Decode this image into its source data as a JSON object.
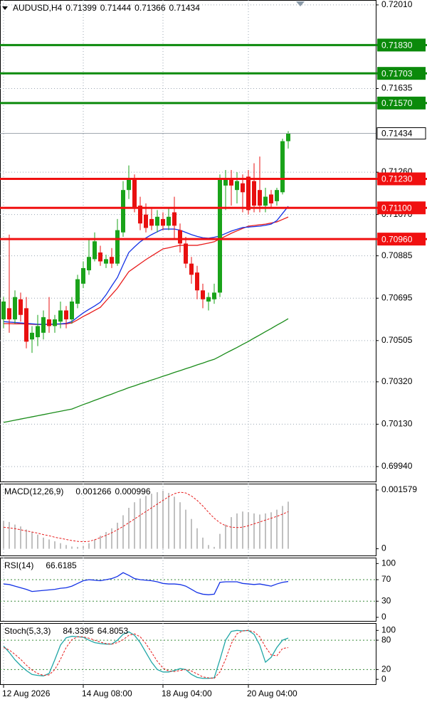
{
  "chart_data": [
    {
      "type": "candlestick",
      "symbol": "AUDUSD,H4",
      "categories": [
        "12 Aug 2026",
        null,
        null,
        null,
        null,
        null,
        null,
        null,
        null,
        null,
        null,
        null,
        null,
        null,
        "14 Aug 08:00",
        null,
        null,
        null,
        null,
        null,
        null,
        null,
        null,
        null,
        null,
        null,
        null,
        null,
        "18 Aug 04:00",
        null,
        null,
        null,
        null,
        null,
        null,
        null,
        null,
        null,
        null,
        null,
        null,
        null,
        null,
        "20 Aug 04:00",
        null,
        null,
        null,
        null,
        null,
        null,
        null
      ],
      "open": [
        0.706,
        0.7065,
        0.706,
        0.7069,
        0.7065,
        0.7051,
        0.7052,
        0.7054,
        0.706,
        0.7057,
        0.7059,
        0.7064,
        0.706,
        0.7067,
        0.7076,
        0.7082,
        0.7087,
        0.709,
        0.7085,
        0.7088,
        0.7085,
        0.7099,
        0.7118,
        0.7123,
        0.7111,
        0.7107,
        0.7105,
        0.7102,
        0.7105,
        0.7102,
        0.7108,
        0.71,
        0.7094,
        0.7085,
        0.7081,
        0.7073,
        0.7068,
        0.7069,
        0.7072,
        0.712,
        0.7123,
        0.7118,
        0.7121,
        0.7124,
        0.7122,
        0.7118,
        0.7111,
        0.7116,
        0.7113,
        0.7117,
        0.71399
      ],
      "high": [
        0.707,
        0.7098,
        0.7073,
        0.7072,
        0.707,
        0.7057,
        0.7062,
        0.7064,
        0.707,
        0.7062,
        0.7068,
        0.7066,
        0.707,
        0.708,
        0.7086,
        0.7096,
        0.7099,
        0.7093,
        0.7089,
        0.7092,
        0.7105,
        0.7122,
        0.7129,
        0.7125,
        0.7115,
        0.7112,
        0.711,
        0.7109,
        0.7108,
        0.711,
        0.7115,
        0.7103,
        0.7097,
        0.7088,
        0.7084,
        0.7076,
        0.7072,
        0.7076,
        0.7125,
        0.7127,
        0.7127,
        0.7126,
        0.7125,
        0.7127,
        0.713,
        0.7133,
        0.7119,
        0.7118,
        0.7119,
        0.7141,
        0.71444
      ],
      "low": [
        0.7056,
        0.7054,
        0.7058,
        0.7059,
        0.7047,
        0.7045,
        0.7048,
        0.7051,
        0.7054,
        0.7054,
        0.7056,
        0.7056,
        0.7058,
        0.7065,
        0.7074,
        0.708,
        0.7086,
        0.7084,
        0.7083,
        0.7083,
        0.7084,
        0.7097,
        0.7114,
        0.7108,
        0.71,
        0.7099,
        0.71,
        0.7099,
        0.71,
        0.71,
        0.7096,
        0.709,
        0.7083,
        0.7076,
        0.7069,
        0.7065,
        0.7064,
        0.7067,
        0.707,
        0.7109,
        0.7111,
        0.7112,
        0.7108,
        0.7107,
        0.7108,
        0.7108,
        0.7108,
        0.711,
        0.7111,
        0.7116,
        0.71366
      ],
      "close": [
        0.7068,
        0.706,
        0.707,
        0.7062,
        0.705,
        0.7054,
        0.7057,
        0.7061,
        0.7057,
        0.706,
        0.7064,
        0.706,
        0.7068,
        0.7078,
        0.7083,
        0.7088,
        0.7095,
        0.7086,
        0.7087,
        0.7085,
        0.71,
        0.7118,
        0.7123,
        0.711,
        0.7103,
        0.7101,
        0.7102,
        0.7106,
        0.7102,
        0.7106,
        0.7102,
        0.7094,
        0.7085,
        0.708,
        0.7073,
        0.7069,
        0.707,
        0.7072,
        0.7123,
        0.7123,
        0.712,
        0.7122,
        0.7117,
        0.7109,
        0.7111,
        0.7111,
        0.7115,
        0.7112,
        0.7118,
        0.71399,
        0.71434
      ],
      "up_color": "#1aa31a",
      "down_color": "#e81010",
      "series": [
        {
          "color": "#1a8c1a",
          "values": [
            0.70138,
            0.70143,
            0.70148,
            0.70153,
            0.70158,
            0.70163,
            0.70168,
            0.70173,
            0.70178,
            0.70183,
            0.70188,
            0.70193,
            0.70198,
            0.70208,
            0.70218,
            0.70227,
            0.70237,
            0.70246,
            0.70256,
            0.70265,
            0.70275,
            0.70284,
            0.70294,
            0.70302,
            0.70311,
            0.70319,
            0.70328,
            0.70336,
            0.70345,
            0.70353,
            0.70362,
            0.7037,
            0.70379,
            0.70387,
            0.70396,
            0.70404,
            0.70413,
            0.70421,
            0.70434,
            0.70448,
            0.70461,
            0.70474,
            0.70488,
            0.70501,
            0.70516,
            0.7053,
            0.70545,
            0.70559,
            0.70574,
            0.70588,
            0.70603
          ]
        },
        {
          "color": "#e81c1c",
          "values": [
            0.70581,
            0.70581,
            0.7058,
            0.7058,
            0.70579,
            0.70578,
            0.70577,
            0.70577,
            0.70577,
            0.70578,
            0.70579,
            0.7058,
            0.70584,
            0.70598,
            0.70613,
            0.70626,
            0.7064,
            0.70654,
            0.70683,
            0.70711,
            0.7074,
            0.70777,
            0.70814,
            0.70832,
            0.7085,
            0.70868,
            0.70884,
            0.709,
            0.70916,
            0.70921,
            0.70927,
            0.70932,
            0.70932,
            0.70932,
            0.70932,
            0.70937,
            0.70942,
            0.70948,
            0.70961,
            0.70973,
            0.70986,
            0.70997,
            0.71008,
            0.71018,
            0.71021,
            0.71024,
            0.71027,
            0.71032,
            0.71037,
            0.71048,
            0.71059
          ]
        },
        {
          "color": "#1432e6",
          "values": [
            0.7059,
            0.70588,
            0.70586,
            0.70584,
            0.70582,
            0.7058,
            0.70578,
            0.70578,
            0.70578,
            0.70579,
            0.7058,
            0.70582,
            0.7059,
            0.7061,
            0.70629,
            0.70645,
            0.7066,
            0.70677,
            0.7071,
            0.7075,
            0.70788,
            0.70845,
            0.709,
            0.70925,
            0.70948,
            0.70965,
            0.7098,
            0.70993,
            0.71005,
            0.71005,
            0.71005,
            0.71,
            0.7099,
            0.7098,
            0.70972,
            0.70966,
            0.70964,
            0.70968,
            0.70974,
            0.70985,
            0.70996,
            0.71004,
            0.71012,
            0.71014,
            0.71016,
            0.71018,
            0.71022,
            0.71027,
            0.71043,
            0.71075,
            0.71107
          ]
        }
      ],
      "levels": [
        {
          "value": 0.7183,
          "label": "0.71830",
          "color": "#0b8a0b"
        },
        {
          "value": 0.71703,
          "color": "#0b8a0b"
        },
        {
          "value": 0.7157,
          "label": "0.71570",
          "color": "#0b8a0b"
        },
        {
          "value": 0.7123,
          "label": "0.71230",
          "color": "#f01010"
        },
        {
          "value": 0.711,
          "label": "0.71100",
          "color": "#f01010"
        },
        {
          "value": 0.7096,
          "label": "0.70960",
          "color": "#f01010"
        }
      ],
      "ylim": [
        0.69873,
        0.72032
      ],
      "yticks": [
        {
          "value": 0.7201,
          "label": "0.72010"
        },
        0.71635,
        {
          "value": 0.7126,
          "label": "0.71260"
        },
        {
          "value": 0.7107,
          "label": "0.71070"
        },
        0.70885,
        0.70695,
        0.70505,
        {
          "value": 0.7032,
          "label": "0.70320"
        },
        {
          "value": 0.7013,
          "label": "0.70130"
        },
        {
          "value": 0.6994,
          "label": "0.69940"
        }
      ],
      "grid": true
    },
    {
      "type": "macd",
      "label": "MACD(12,26,9)",
      "series": [
        {
          "color": "#c0c0c0",
          "style": "bar",
          "values": [
            0.00075,
            0.00072,
            0.00065,
            0.0006,
            0.00052,
            0.00045,
            0.00038,
            0.0003,
            0.00025,
            0.0002,
            0.00015,
            0.0001,
            6e-05,
            5e-05,
            8e-05,
            0.00015,
            0.00025,
            0.00035,
            0.00045,
            0.00055,
            0.0007,
            0.0009,
            0.0011,
            0.00125,
            0.00135,
            0.00142,
            0.00148,
            0.00152,
            0.00156,
            0.0015,
            0.0014,
            0.00125,
            0.00105,
            0.0008,
            0.00055,
            0.0003,
            0.0001,
            5e-05,
            0.0004,
            0.00065,
            0.00085,
            0.00095,
            0.001,
            0.00098,
            0.00095,
            0.00092,
            0.00095,
            0.00098,
            0.00105,
            0.00115,
            0.001266
          ]
        },
        {
          "color": "#e81c1c",
          "style": "dashed",
          "values": [
            0.00058,
            0.00056,
            0.00054,
            0.00051,
            0.00048,
            0.00045,
            0.00042,
            0.00038,
            0.00035,
            0.00031,
            0.00028,
            0.00025,
            0.00022,
            0.0002,
            0.00019,
            0.0002,
            0.00024,
            0.0003,
            0.00036,
            0.00043,
            0.00051,
            0.0006,
            0.0007,
            0.0008,
            0.0009,
            0.001,
            0.0011,
            0.0012,
            0.0013,
            0.0014,
            0.00148,
            0.00152,
            0.0015,
            0.00142,
            0.0013,
            0.00115,
            0.00098,
            0.00082,
            0.0007,
            0.00062,
            0.00058,
            0.00057,
            0.00058,
            0.00062,
            0.00067,
            0.00072,
            0.00077,
            0.00082,
            0.00087,
            0.00093,
            0.000996
          ]
        }
      ],
      "ylim": [
        -0.0002,
        0.00175
      ],
      "yticks": [
        0.001579,
        0
      ]
    },
    {
      "type": "line",
      "label": "RSI(14)",
      "series": [
        {
          "color": "#1432e6",
          "values": [
            62,
            61,
            58,
            55,
            52,
            48,
            49,
            50,
            51,
            52,
            54,
            55,
            58,
            63,
            68,
            70,
            69,
            68,
            70,
            72,
            76,
            83,
            78,
            72,
            70,
            69,
            68,
            66,
            63,
            62,
            62,
            61,
            58,
            52,
            46,
            43,
            42,
            43,
            65,
            66,
            66,
            66,
            63,
            62,
            61,
            62,
            60,
            58,
            62,
            65,
            66.6185
          ]
        }
      ],
      "levels": [
        70,
        30
      ],
      "level_color": "#3a8a3a",
      "ylim": [
        -8,
        111
      ],
      "yticks": [
        100,
        70,
        30,
        0
      ]
    },
    {
      "type": "line",
      "label": "Stoch(5,3,3)",
      "series": [
        {
          "color": "#20a6a6",
          "values": [
            68,
            55,
            40,
            28,
            18,
            10,
            8,
            7,
            12,
            40,
            70,
            85,
            88,
            87,
            86,
            80,
            75,
            73,
            72,
            72,
            80,
            92,
            97,
            90,
            75,
            55,
            35,
            20,
            15,
            15,
            18,
            22,
            20,
            10,
            4,
            2,
            2,
            3,
            40,
            80,
            98,
            100,
            99,
            100,
            92,
            70,
            35,
            45,
            65,
            80,
            84.3395
          ]
        },
        {
          "color": "#e81c1c",
          "style": "dashed",
          "values": [
            65,
            60,
            51,
            41,
            29,
            19,
            12,
            8,
            9,
            20,
            41,
            65,
            81,
            87,
            87,
            84,
            80,
            76,
            73,
            72,
            75,
            81,
            90,
            93,
            87,
            73,
            55,
            37,
            23,
            17,
            16,
            18,
            20,
            17,
            11,
            5,
            3,
            2,
            15,
            41,
            73,
            93,
            99,
            100,
            97,
            87,
            66,
            50,
            48,
            63,
            64.8053
          ]
        }
      ],
      "levels": [
        80,
        20
      ],
      "level_color": "#3a8a3a",
      "ylim": [
        -10,
        115
      ],
      "yticks": [
        100,
        80,
        20,
        0
      ]
    }
  ]
}
